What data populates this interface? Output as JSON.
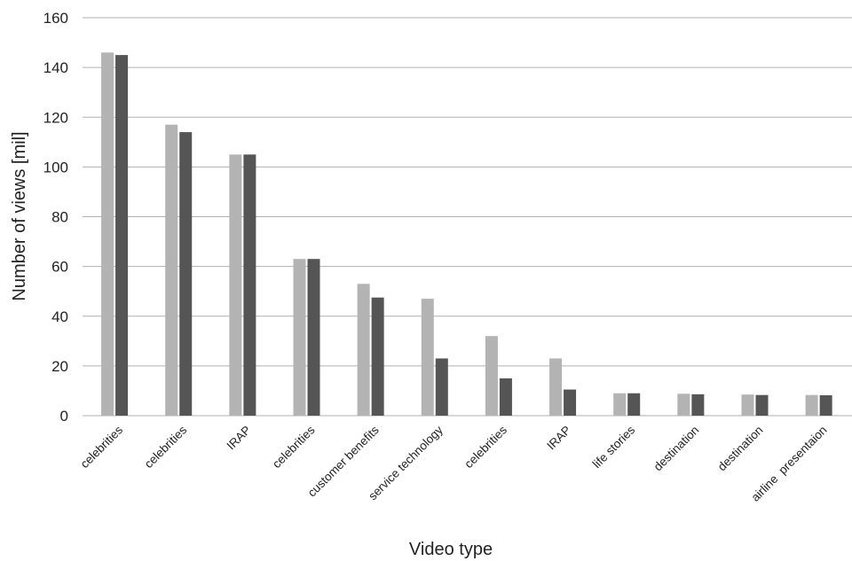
{
  "chart_data": {
    "type": "bar",
    "title": "",
    "xlabel": "Video type",
    "ylabel": "Number of views [mil]",
    "ylim": [
      0,
      160
    ],
    "yticks": [
      0,
      20,
      40,
      60,
      80,
      100,
      120,
      140,
      160
    ],
    "grid": true,
    "legend": "none",
    "categories": [
      "celebrities",
      "celebrities",
      "IRAP",
      "celebrities",
      "customer benefits",
      "service technology",
      "celebrities",
      "IRAP",
      "life stories",
      "destination",
      "destination",
      "airline  presentaion"
    ],
    "series": [
      {
        "values": [
          146,
          117,
          105,
          63,
          53,
          47,
          32,
          23,
          9,
          8.8,
          8.5,
          8.3
        ],
        "color": "#b3b3b3"
      },
      {
        "values": [
          145,
          114,
          105,
          63,
          47.5,
          23,
          15,
          10.5,
          9,
          8.6,
          8.3,
          8.2
        ],
        "color": "#555555"
      }
    ],
    "gridline_color": "#b0b0b0"
  }
}
